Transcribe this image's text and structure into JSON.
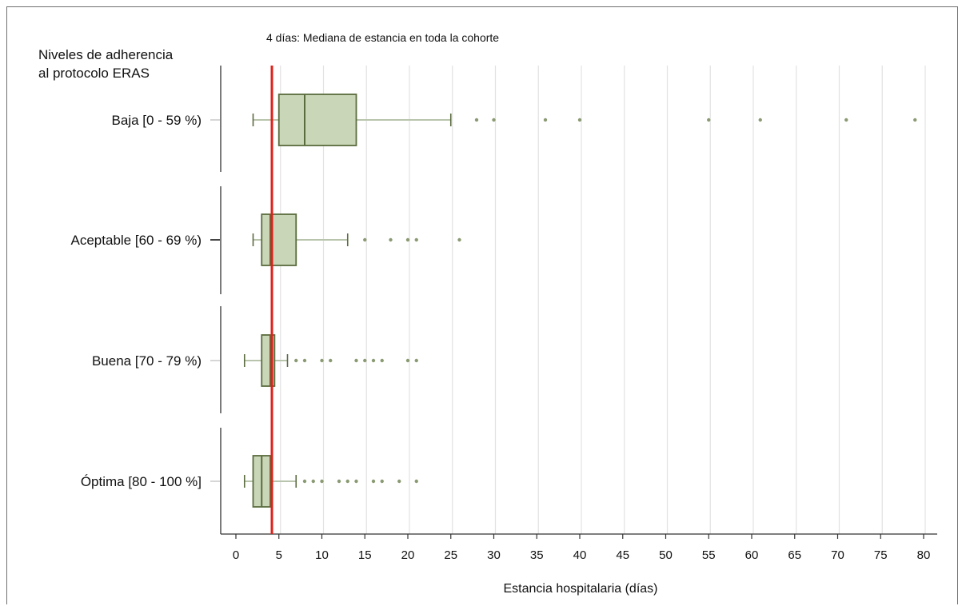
{
  "chart_data": {
    "type": "boxplot",
    "title": "4 días: Mediana de estancia en toda la cohorte",
    "ytitle_lines": [
      "Niveles de adherencia",
      "al protocolo ERAS"
    ],
    "xlabel": "Estancia hospitalaria (días)",
    "xlim": [
      -2,
      82
    ],
    "xticks": [
      0,
      5,
      10,
      15,
      20,
      25,
      30,
      35,
      40,
      45,
      50,
      55,
      60,
      65,
      70,
      75,
      80
    ],
    "reference_line": {
      "value": 4,
      "color": "#e0201b"
    },
    "colors": {
      "box_fill": "#c9d6b8",
      "box_stroke": "#5a6b3e",
      "whisker": "#b8c4ab",
      "grid": "#e2e2e2",
      "outlier": "#8a9a72"
    },
    "groups": [
      {
        "name": "Baja [0 - 59 %)",
        "whisker_low": 2,
        "q1": 5,
        "median": 8,
        "q3": 14,
        "whisker_high": 25,
        "outliers": [
          28,
          30,
          36,
          40,
          55,
          61,
          71,
          79
        ]
      },
      {
        "name": "Aceptable [60 - 69 %)",
        "whisker_low": 2,
        "q1": 3,
        "median": 4,
        "q3": 7,
        "whisker_high": 13,
        "outliers": [
          15,
          18,
          20,
          21,
          26
        ]
      },
      {
        "name": "Buena [70 - 79 %)",
        "whisker_low": 1,
        "q1": 3,
        "median": 4,
        "q3": 4.5,
        "whisker_high": 6,
        "outliers": [
          7,
          8,
          10,
          11,
          14,
          15,
          16,
          17,
          20,
          21
        ]
      },
      {
        "name": "Óptima [80 - 100 %]",
        "whisker_low": 1,
        "q1": 2,
        "median": 3,
        "q3": 4,
        "whisker_high": 7,
        "outliers": [
          8,
          9,
          10,
          12,
          13,
          14,
          16,
          17,
          19,
          21
        ]
      }
    ]
  }
}
